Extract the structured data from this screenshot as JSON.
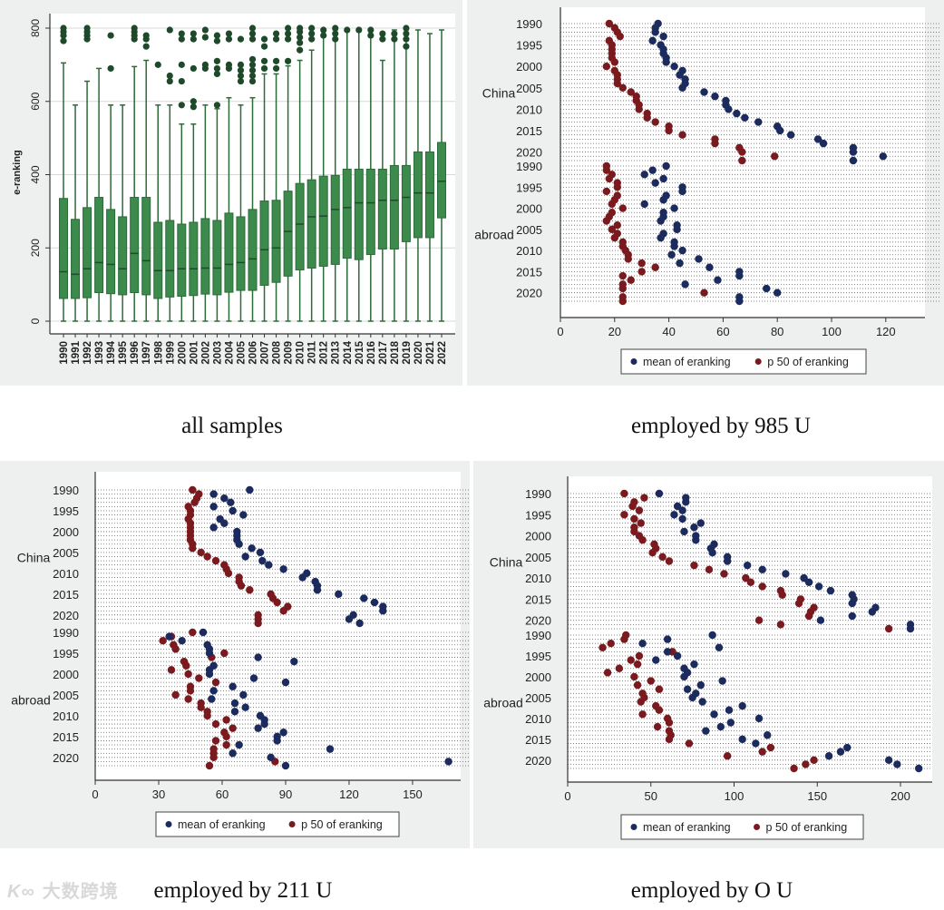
{
  "captions": {
    "a": "all samples",
    "b": "employed by 985 U",
    "c": "employed by 211 U",
    "d": "employed by O U"
  },
  "watermark": {
    "logo": "K∞",
    "text": "大数跨境"
  },
  "colors": {
    "box_fill": "#3d8a4d",
    "box_stroke": "#2c6a38",
    "outlier": "#1e4a2b",
    "mean": "#1c2b5e",
    "p50": "#7a1a1e",
    "frame_bg": "#eef0f0"
  },
  "chart_data": [
    {
      "type": "box",
      "title": "all samples",
      "ylabel": "e-ranking",
      "ylim": [
        0,
        800
      ],
      "yticks": [
        "0",
        "200",
        "400",
        "600",
        "800"
      ],
      "grid": true,
      "categories": [
        "1990",
        "1991",
        "1992",
        "1993",
        "1994",
        "1995",
        "1996",
        "1997",
        "1998",
        "1999",
        "2000",
        "2001",
        "2002",
        "2003",
        "2004",
        "2005",
        "2006",
        "2007",
        "2008",
        "2009",
        "2010",
        "2011",
        "2012",
        "2013",
        "2014",
        "2015",
        "2016",
        "2017",
        "2018",
        "2019",
        "2020",
        "2021",
        "2022"
      ],
      "q1": [
        62,
        62,
        64,
        78,
        75,
        72,
        78,
        72,
        62,
        66,
        68,
        70,
        74,
        72,
        79,
        84,
        84,
        98,
        106,
        123,
        140,
        145,
        150,
        155,
        172,
        168,
        182,
        197,
        197,
        217,
        228,
        228,
        282
      ],
      "median": [
        135,
        128,
        143,
        160,
        155,
        143,
        185,
        165,
        138,
        138,
        143,
        143,
        145,
        145,
        155,
        160,
        170,
        195,
        200,
        245,
        265,
        285,
        287,
        305,
        310,
        323,
        323,
        330,
        330,
        338,
        350,
        350,
        382
      ],
      "q3": [
        335,
        278,
        310,
        338,
        305,
        285,
        338,
        338,
        270,
        275,
        265,
        270,
        280,
        275,
        295,
        285,
        305,
        328,
        330,
        355,
        376,
        386,
        396,
        398,
        415,
        415,
        415,
        415,
        425,
        425,
        462,
        462,
        488
      ],
      "whisker_low": [
        0,
        0,
        0,
        0,
        0,
        0,
        0,
        0,
        0,
        0,
        0,
        0,
        0,
        0,
        0,
        0,
        0,
        0,
        0,
        0,
        0,
        0,
        0,
        0,
        0,
        0,
        0,
        0,
        0,
        0,
        0,
        0,
        0
      ],
      "whisker_high": [
        705,
        590,
        655,
        690,
        590,
        590,
        695,
        712,
        590,
        590,
        538,
        538,
        590,
        580,
        610,
        590,
        610,
        675,
        675,
        697,
        712,
        740,
        795,
        795,
        795,
        795,
        795,
        712,
        795,
        795,
        795,
        785,
        795
      ],
      "outliers": [
        [
          765,
          780,
          790,
          800
        ],
        [],
        [
          770,
          780,
          790,
          800
        ],
        [],
        [
          690,
          780
        ],
        [],
        [
          770,
          780,
          790,
          800
        ],
        [
          750,
          770,
          780
        ],
        [
          700
        ],
        [
          655,
          670,
          795
        ],
        [
          590,
          655,
          700,
          770,
          785
        ],
        [
          585,
          600,
          690,
          770,
          785
        ],
        [
          690,
          700,
          775,
          795
        ],
        [
          590,
          675,
          690,
          710,
          765,
          780
        ],
        [
          690,
          700,
          770,
          785
        ],
        [
          655,
          670,
          685,
          700,
          770
        ],
        [
          655,
          670,
          685,
          700,
          715,
          770,
          785,
          800
        ],
        [
          690,
          710,
          750,
          770
        ],
        [
          690,
          710,
          770,
          785
        ],
        [
          710,
          770,
          785,
          800
        ],
        [
          740,
          760,
          775,
          790,
          800
        ],
        [
          770,
          785,
          800
        ],
        [
          780,
          795
        ],
        [
          770,
          785,
          800
        ],
        [
          795
        ],
        [
          795
        ],
        [
          780,
          795
        ],
        [
          770,
          785
        ],
        [
          770,
          785
        ],
        [
          750,
          770,
          785,
          800
        ],
        [],
        [],
        []
      ]
    },
    {
      "type": "dot",
      "title": "employed by 985 U",
      "xlim": [
        0,
        135
      ],
      "xticks": [
        0,
        20,
        40,
        60,
        80,
        100,
        120
      ],
      "groups": [
        "China",
        "abroad"
      ],
      "years": [
        1990,
        1991,
        1992,
        1993,
        1994,
        1995,
        1996,
        1997,
        1998,
        1999,
        2000,
        2001,
        2002,
        2003,
        2004,
        2005,
        2006,
        2007,
        2008,
        2009,
        2010,
        2011,
        2012,
        2013,
        2014,
        2015,
        2016,
        2017,
        2018,
        2019,
        2020,
        2021,
        2022
      ],
      "year_ticks": [
        "1990",
        "1995",
        "2000",
        "2005",
        "2010",
        "2015",
        "2020"
      ],
      "legend": [
        "mean of eranking",
        "p 50 of eranking"
      ],
      "legend_position": "bottom",
      "series": {
        "China": {
          "mean": [
            36,
            35,
            35,
            38,
            34,
            37,
            38,
            38,
            39,
            39,
            42,
            45,
            44,
            46,
            46,
            45,
            53,
            57,
            61,
            61,
            62,
            65,
            68,
            73,
            80,
            81,
            85,
            95,
            97,
            108,
            108,
            119,
            108
          ],
          "p50": [
            18,
            20,
            21,
            22,
            18,
            19,
            19,
            19,
            19,
            20,
            17,
            20,
            21,
            21,
            21,
            23,
            26,
            28,
            28,
            29,
            29,
            32,
            32,
            35,
            40,
            40,
            45,
            57,
            57,
            66,
            67,
            79,
            67
          ]
        },
        "abroad": {
          "mean": [
            39,
            34,
            31,
            38,
            35,
            45,
            45,
            39,
            38,
            31,
            42,
            38,
            38,
            37,
            43,
            43,
            38,
            37,
            42,
            42,
            45,
            41,
            51,
            44,
            55,
            66,
            66,
            58,
            46,
            76,
            80,
            66,
            66
          ],
          "p50": [
            17,
            17,
            19,
            18,
            21,
            21,
            17,
            21,
            20,
            19,
            23,
            19,
            18,
            17,
            21,
            19,
            21,
            20,
            23,
            23,
            24,
            25,
            25,
            30,
            35,
            30,
            23,
            26,
            23,
            23,
            53,
            23,
            23
          ]
        }
      }
    },
    {
      "type": "dot",
      "title": "employed by 211 U",
      "xlim": [
        0,
        170
      ],
      "xticks": [
        0,
        30,
        60,
        90,
        120,
        150
      ],
      "groups": [
        "China",
        "abroad"
      ],
      "years": [
        1990,
        1991,
        1992,
        1993,
        1994,
        1995,
        1996,
        1997,
        1998,
        1999,
        2000,
        2001,
        2002,
        2003,
        2004,
        2005,
        2006,
        2007,
        2008,
        2009,
        2010,
        2011,
        2012,
        2013,
        2014,
        2015,
        2016,
        2017,
        2018,
        2019,
        2020,
        2021,
        2022
      ],
      "year_ticks": [
        "1990",
        "1995",
        "2000",
        "2005",
        "2010",
        "2015",
        "2020"
      ],
      "legend": [
        "mean of eranking",
        "p 50 of eranking"
      ],
      "legend_position": "bottom",
      "series": {
        "China": {
          "mean": [
            73,
            56,
            61,
            64,
            56,
            65,
            70,
            59,
            61,
            56,
            67,
            67,
            67,
            68,
            74,
            78,
            71,
            79,
            82,
            89,
            100,
            98,
            104,
            105,
            105,
            115,
            127,
            132,
            136,
            136,
            122,
            120,
            125
          ],
          "p50": [
            46,
            49,
            48,
            47,
            44,
            45,
            45,
            44,
            45,
            45,
            45,
            45,
            45,
            46,
            46,
            50,
            53,
            57,
            61,
            62,
            63,
            68,
            68,
            69,
            73,
            83,
            84,
            86,
            91,
            89,
            77,
            77,
            77
          ]
        },
        "abroad": {
          "mean": [
            51,
            35,
            41,
            53,
            54,
            54,
            77,
            94,
            56,
            54,
            54,
            75,
            90,
            65,
            56,
            70,
            55,
            66,
            71,
            66,
            78,
            80,
            80,
            77,
            89,
            86,
            86,
            68,
            111,
            65,
            83,
            167,
            90
          ],
          "p50": [
            46,
            36,
            32,
            37,
            38,
            61,
            55,
            42,
            43,
            36,
            44,
            49,
            57,
            45,
            45,
            38,
            44,
            50,
            50,
            53,
            53,
            62,
            57,
            65,
            61,
            62,
            57,
            62,
            56,
            56,
            56,
            85,
            54
          ]
        }
      }
    },
    {
      "type": "dot",
      "title": "employed by O U",
      "xlim": [
        0,
        218
      ],
      "xticks": [
        0,
        50,
        100,
        150,
        200
      ],
      "groups": [
        "China",
        "abroad"
      ],
      "years": [
        1990,
        1991,
        1992,
        1993,
        1994,
        1995,
        1996,
        1997,
        1998,
        1999,
        2000,
        2001,
        2002,
        2003,
        2004,
        2005,
        2006,
        2007,
        2008,
        2009,
        2010,
        2011,
        2012,
        2013,
        2014,
        2015,
        2016,
        2017,
        2018,
        2019,
        2020,
        2021,
        2022
      ],
      "year_ticks": [
        "1990",
        "1995",
        "2000",
        "2005",
        "2010",
        "2015",
        "2020"
      ],
      "legend": [
        "mean of eranking",
        "p 50 of eranking"
      ],
      "legend_position": "bottom",
      "series": {
        "China": {
          "mean": [
            55,
            71,
            71,
            66,
            69,
            64,
            69,
            80,
            76,
            70,
            77,
            77,
            88,
            86,
            87,
            96,
            96,
            108,
            117,
            131,
            142,
            145,
            151,
            158,
            171,
            172,
            171,
            185,
            183,
            171,
            152,
            206,
            206
          ],
          "p50": [
            34,
            46,
            40,
            39,
            43,
            34,
            40,
            44,
            40,
            40,
            43,
            45,
            52,
            53,
            51,
            57,
            61,
            76,
            85,
            94,
            107,
            110,
            117,
            128,
            129,
            140,
            139,
            148,
            146,
            145,
            115,
            128,
            193
          ]
        },
        "abroad": {
          "mean": [
            87,
            60,
            45,
            91,
            60,
            66,
            53,
            76,
            70,
            72,
            70,
            93,
            80,
            72,
            77,
            75,
            81,
            105,
            97,
            88,
            115,
            98,
            92,
            83,
            120,
            105,
            113,
            168,
            164,
            157,
            193,
            198,
            211
          ],
          "p50": [
            35,
            34,
            26,
            21,
            63,
            43,
            38,
            42,
            31,
            24,
            40,
            50,
            42,
            55,
            45,
            46,
            44,
            53,
            55,
            45,
            60,
            61,
            54,
            61,
            62,
            61,
            73,
            122,
            117,
            96,
            148,
            143,
            136
          ]
        }
      }
    }
  ]
}
